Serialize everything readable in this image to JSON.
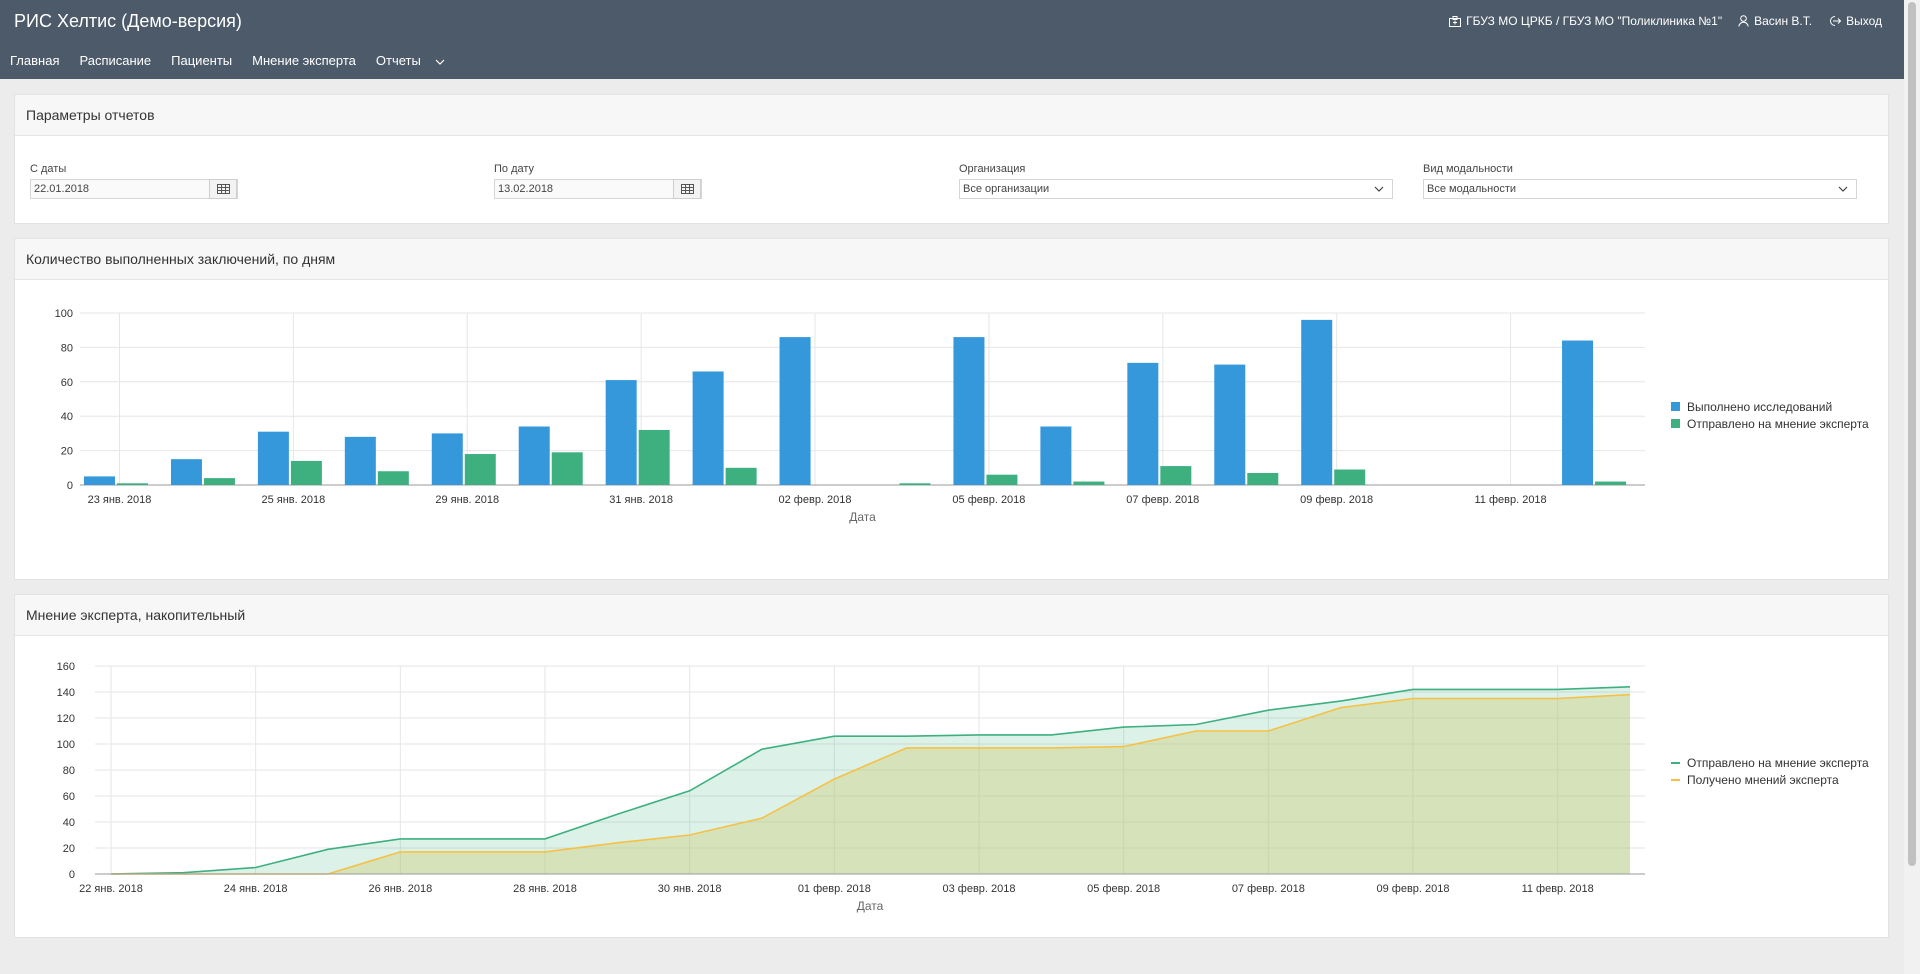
{
  "app": {
    "title": "РИС Хелтис (Демо-версия)",
    "org": "ГБУЗ МО ЦРКБ / ГБУЗ МО \"Поликлиника №1\"",
    "user": "Васин В.Т.",
    "logout": "Выход"
  },
  "nav": [
    "Главная",
    "Расписание",
    "Пациенты",
    "Мнение эксперта",
    "Отчеты"
  ],
  "params": {
    "title": "Параметры отчетов",
    "from_label": "С даты",
    "from_value": "22.01.2018",
    "to_label": "По дату",
    "to_value": "13.02.2018",
    "org_label": "Организация",
    "org_value": "Все организации",
    "mod_label": "Вид модальности",
    "mod_value": "Все модальности"
  },
  "colors": {
    "header": "#4c5a69",
    "blue": "#3498db",
    "green": "#3eb080",
    "yellow": "#f6c143"
  },
  "chart_data": [
    {
      "type": "bar",
      "title": "Количество выполненных заключений, по дням",
      "xlabel": "Дата",
      "ylim": [
        0,
        100
      ],
      "yticks": [
        0,
        20,
        40,
        60,
        80,
        100
      ],
      "tick_labels": [
        "23 янв. 2018",
        "25 янв. 2018",
        "29 янв. 2018",
        "31 янв. 2018",
        "02 февр. 2018",
        "05 февр. 2018",
        "07 февр. 2018",
        "09 февр. 2018",
        "11 февр. 2018"
      ],
      "series": [
        {
          "name": "Выполнено исследований",
          "color": "#3498db",
          "values": [
            5,
            15,
            31,
            28,
            30,
            34,
            61,
            66,
            86,
            0,
            86,
            34,
            71,
            70,
            96,
            0,
            0,
            84
          ]
        },
        {
          "name": "Отправлено на мнение эксперта",
          "color": "#3eb080",
          "values": [
            1,
            4,
            14,
            8,
            18,
            19,
            32,
            10,
            0,
            1,
            6,
            2,
            11,
            7,
            9,
            0,
            0,
            2
          ]
        }
      ]
    },
    {
      "type": "area",
      "title": "Мнение эксперта, накопительный",
      "xlabel": "Дата",
      "ylim": [
        0,
        160
      ],
      "yticks": [
        0,
        20,
        40,
        60,
        80,
        100,
        120,
        140,
        160
      ],
      "tick_labels": [
        "22 янв. 2018",
        "24 янв. 2018",
        "26 янв. 2018",
        "28 янв. 2018",
        "30 янв. 2018",
        "01 февр. 2018",
        "03 февр. 2018",
        "05 февр. 2018",
        "07 февр. 2018",
        "09 февр. 2018",
        "11 февр. 2018"
      ],
      "series": [
        {
          "name": "Отправлено на мнение эксперта",
          "color": "#3eb080",
          "values": [
            0,
            1,
            5,
            19,
            27,
            27,
            27,
            46,
            64,
            96,
            106,
            106,
            107,
            107,
            113,
            115,
            126,
            133,
            142,
            142,
            142,
            144
          ]
        },
        {
          "name": "Получено мнений эксперта",
          "color": "#f6c143",
          "values": [
            0,
            0,
            0,
            0,
            17,
            17,
            17,
            24,
            30,
            43,
            73,
            97,
            97,
            97,
            98,
            110,
            110,
            128,
            135,
            135,
            135,
            138
          ]
        }
      ]
    }
  ]
}
